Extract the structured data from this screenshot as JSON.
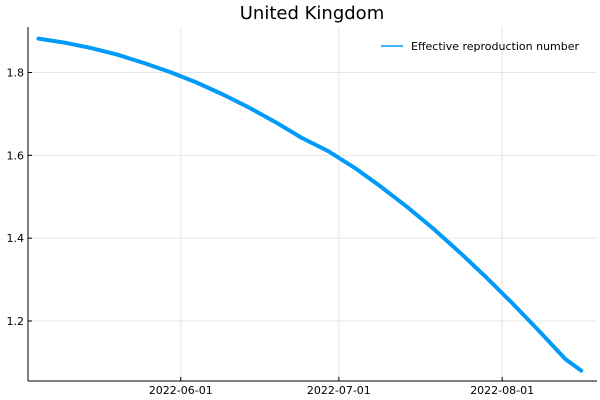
{
  "chart_data": {
    "type": "line",
    "title": "United Kingdom",
    "xlabel": "",
    "ylabel": "",
    "x_axis": {
      "kind": "date",
      "range": [
        "2022-05-03",
        "2022-08-19"
      ],
      "ticks": [
        "2022-06-01",
        "2022-07-01",
        "2022-08-01"
      ],
      "grid": true
    },
    "y_axis": {
      "range": [
        1.055,
        1.91
      ],
      "ticks": [
        1.2,
        1.4,
        1.6,
        1.8
      ],
      "tick_labels": [
        "1.2",
        "1.4",
        "1.6",
        "1.8"
      ],
      "grid": true
    },
    "legend": {
      "position": "top-right"
    },
    "series": [
      {
        "name": "Effective reproduction number",
        "color": "#009AFA",
        "points": [
          {
            "x": "2022-05-05",
            "y": 1.882
          },
          {
            "x": "2022-05-10",
            "y": 1.872
          },
          {
            "x": "2022-05-15",
            "y": 1.859
          },
          {
            "x": "2022-05-20",
            "y": 1.843
          },
          {
            "x": "2022-05-25",
            "y": 1.823
          },
          {
            "x": "2022-05-30",
            "y": 1.801
          },
          {
            "x": "2022-06-04",
            "y": 1.776
          },
          {
            "x": "2022-06-09",
            "y": 1.747
          },
          {
            "x": "2022-06-14",
            "y": 1.715
          },
          {
            "x": "2022-06-19",
            "y": 1.68
          },
          {
            "x": "2022-06-24",
            "y": 1.642
          },
          {
            "x": "2022-06-29",
            "y": 1.61
          },
          {
            "x": "2022-07-04",
            "y": 1.57
          },
          {
            "x": "2022-07-09",
            "y": 1.524
          },
          {
            "x": "2022-07-14",
            "y": 1.475
          },
          {
            "x": "2022-07-19",
            "y": 1.422
          },
          {
            "x": "2022-07-24",
            "y": 1.365
          },
          {
            "x": "2022-07-29",
            "y": 1.305
          },
          {
            "x": "2022-08-03",
            "y": 1.242
          },
          {
            "x": "2022-08-08",
            "y": 1.176
          },
          {
            "x": "2022-08-13",
            "y": 1.108
          },
          {
            "x": "2022-08-16",
            "y": 1.08
          }
        ]
      }
    ]
  }
}
